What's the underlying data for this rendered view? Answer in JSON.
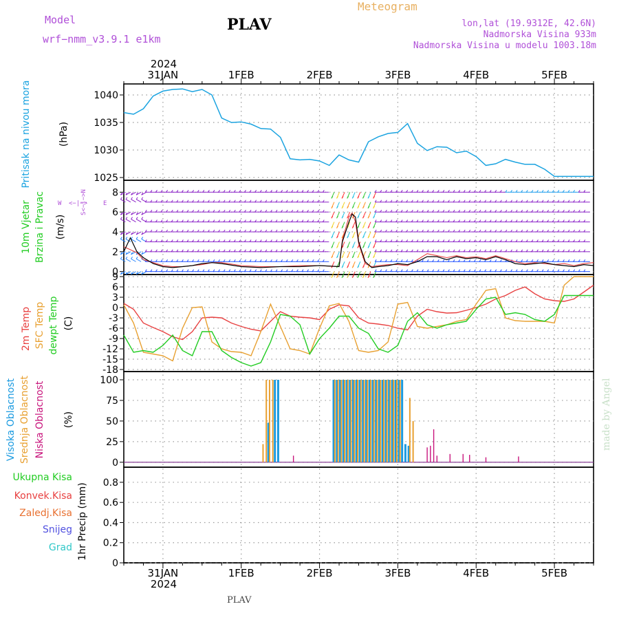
{
  "header": {
    "model_label": "Model",
    "model_name": "wrf−nmm_v3.9.1  e1km",
    "station": "PLAV",
    "meteogram_title": "Meteogram",
    "lonlat": "lon,lat (19.9312E, 42.6N)",
    "elevation": "Nadmorska Visina 933m",
    "model_elevation": "Nadmorska Visina u modelu 1003.18m",
    "watermark": "made by Angel",
    "footer_station": "PLAV"
  },
  "time_axis": {
    "top_year": "2024",
    "bottom_year": "2024",
    "date_labels": [
      "31JAN",
      "1FEB",
      "2FEB",
      "3FEB",
      "4FEB",
      "5FEB"
    ]
  },
  "colors": {
    "pressure": "#1aa3e0",
    "temp2m": "#e84040",
    "sfc": "#e8a030",
    "dew": "#22cc22",
    "vis": "#1a9ae0",
    "mid": "#e8a030",
    "low": "#c8147c",
    "wind_speed": "#000000",
    "gust": "#e84040",
    "grid": "#999999",
    "purple_text": "#b050d8",
    "orange_text": "#e8b060",
    "watermark": "#c8e0c8"
  },
  "panels": {
    "pressure": {
      "label": "Pritisak na nivou mora",
      "unit": "(hPa)",
      "ticks": [
        "1025",
        "1030",
        "1035",
        "1040"
      ]
    },
    "wind": {
      "label1": "10m Vjetar",
      "label2": "Brzina i Pravac",
      "unit": "(m/s)",
      "compass": [
        "W",
        "<−|−>",
        "E",
        "S<−|−>N"
      ],
      "ticks": [
        "0",
        "2",
        "4",
        "6",
        "8"
      ]
    },
    "temp": {
      "label1": "2m Temp",
      "label2": "SFC Temp",
      "label3": "dewpt Temp",
      "unit": "(C)",
      "ticks": [
        "-18",
        "-15",
        "-12",
        "-9",
        "-6",
        "-3",
        "0",
        "3",
        "6",
        "9"
      ]
    },
    "cloud": {
      "label1": "Visoka Oblacnost",
      "label2": "Srednja Oblacnost",
      "label3": "Niska Oblacnost",
      "unit": "(%)",
      "ticks": [
        "0",
        "25",
        "50",
        "75",
        "100"
      ]
    },
    "precip": {
      "legend": [
        "Ukupna Kisa",
        "Konvek.Kisa",
        "Zaledj.Kisa",
        "Snijeg",
        "Grad"
      ],
      "legend_colors": [
        "#22cc22",
        "#e84040",
        "#e87030",
        "#5050e0",
        "#30c8c8"
      ],
      "unit": "1hr Precip (mm)",
      "ticks": [
        "0",
        "0.2",
        "0.4",
        "0.6",
        "0.8"
      ]
    }
  },
  "chart_data": [
    {
      "type": "line",
      "name": "pressure",
      "x_unit": "hours since 30JAN 12UTC",
      "ylim": [
        1024.5,
        1042
      ],
      "x": [
        0,
        3,
        6,
        9,
        12,
        15,
        18,
        21,
        24,
        27,
        30,
        33,
        36,
        39,
        42,
        45,
        48,
        51,
        54,
        57,
        60,
        63,
        66,
        69,
        72,
        75,
        78,
        81,
        84,
        87,
        90,
        93,
        96,
        99,
        102,
        105,
        108,
        111,
        114,
        117,
        120,
        123,
        126,
        129,
        132,
        135,
        138,
        141,
        144
      ],
      "values": [
        1036.8,
        1036.5,
        1037.5,
        1039.8,
        1040.7,
        1041.0,
        1041.1,
        1040.6,
        1041.0,
        1040.0,
        1035.8,
        1035.0,
        1035.1,
        1034.7,
        1033.9,
        1033.8,
        1032.3,
        1028.4,
        1028.2,
        1028.3,
        1028.0,
        1027.2,
        1029.1,
        1028.2,
        1027.8,
        1031.5,
        1032.4,
        1033.0,
        1033.2,
        1034.8,
        1031.2,
        1029.9,
        1030.6,
        1030.5,
        1029.5,
        1029.8,
        1028.8,
        1027.2,
        1027.5,
        1028.3,
        1027.8,
        1027.4,
        1027.4,
        1026.5,
        1025.2,
        1025.2,
        1025.2,
        1025.2,
        1025.2
      ]
    },
    {
      "type": "line",
      "name": "wind",
      "ylim": [
        -0.3,
        9.2
      ],
      "x": [
        0,
        2,
        4,
        6,
        9,
        12,
        15,
        18,
        21,
        24,
        27,
        30,
        36,
        42,
        48,
        54,
        60,
        66,
        67,
        69,
        70,
        71,
        72,
        74,
        76,
        78,
        81,
        84,
        87,
        90,
        93,
        96,
        99,
        102,
        105,
        108,
        111,
        114,
        117,
        120,
        123,
        126,
        129,
        132,
        135,
        138,
        141,
        144
      ],
      "speed": [
        2.0,
        3.4,
        2.0,
        1.4,
        0.8,
        0.5,
        0.4,
        0.5,
        0.6,
        0.8,
        0.9,
        0.8,
        0.5,
        0.4,
        0.5,
        0.5,
        0.6,
        0.5,
        3.0,
        5.0,
        5.8,
        5.5,
        3.0,
        1.0,
        0.4,
        0.5,
        0.6,
        0.8,
        0.7,
        1.0,
        1.5,
        1.5,
        1.2,
        1.5,
        1.3,
        1.4,
        1.2,
        1.5,
        1.2,
        0.8,
        0.7,
        0.8,
        0.9,
        0.7,
        0.6,
        0.5,
        0.7,
        0.6
      ],
      "gust": [
        2.5,
        2.2,
        1.9,
        1.2,
        0.9,
        0.6,
        0.5,
        0.5,
        0.6,
        0.7,
        0.9,
        0.9,
        0.6,
        0.5,
        0.5,
        0.6,
        0.6,
        0.5,
        3.2,
        5.5,
        5.9,
        5.0,
        2.8,
        0.8,
        0.5,
        0.6,
        0.7,
        0.7,
        0.6,
        1.2,
        1.8,
        1.6,
        1.4,
        1.6,
        1.4,
        1.5,
        1.3,
        1.6,
        1.3,
        1.0,
        0.8,
        0.9,
        0.8,
        0.7,
        0.8,
        0.6,
        0.8,
        0.9
      ],
      "series": [
        {
          "name": "speed",
          "color": "#000000"
        },
        {
          "name": "gust",
          "color": "#e84040"
        }
      ]
    },
    {
      "type": "line",
      "name": "temperature",
      "ylim": [
        -18.6,
        9.6
      ],
      "x": [
        0,
        3,
        6,
        9,
        12,
        15,
        18,
        21,
        24,
        27,
        30,
        33,
        36,
        39,
        42,
        45,
        48,
        51,
        54,
        57,
        60,
        63,
        66,
        69,
        72,
        75,
        78,
        81,
        84,
        87,
        90,
        93,
        96,
        99,
        102,
        105,
        108,
        111,
        114,
        117,
        120,
        123,
        126,
        129,
        132,
        135,
        138,
        141,
        144
      ],
      "series": [
        {
          "name": "2m",
          "color": "#e84040",
          "values": [
            1.2,
            -0.5,
            -4.5,
            -5.8,
            -7.0,
            -8.5,
            -9.3,
            -7.0,
            -3.0,
            -2.8,
            -3.0,
            -4.5,
            -5.5,
            -6.3,
            -6.8,
            -4.0,
            -1.2,
            -2.5,
            -2.8,
            -3.0,
            -3.5,
            -0.5,
            0.8,
            0.5,
            -3.0,
            -4.5,
            -4.8,
            -5.2,
            -6.0,
            -6.5,
            -2.5,
            -0.5,
            -1.2,
            -1.6,
            -1.5,
            -0.8,
            0.0,
            1.0,
            2.5,
            3.5,
            5.0,
            6.0,
            4.0,
            2.5,
            2.0,
            1.8,
            2.5,
            4.5,
            6.5
          ]
        },
        {
          "name": "sfc",
          "color": "#e8a030",
          "values": [
            0.8,
            -4.5,
            -13.0,
            -13.5,
            -14.0,
            -15.5,
            -6.0,
            0.0,
            0.2,
            -10.0,
            -12.0,
            -12.8,
            -13.0,
            -14.0,
            -7.0,
            1.0,
            -5.5,
            -12.0,
            -12.5,
            -13.5,
            -6.0,
            0.5,
            1.2,
            -4.0,
            -12.5,
            -13.0,
            -12.5,
            -10.0,
            1.0,
            1.5,
            -5.5,
            -6.0,
            -5.5,
            -5.0,
            -4.0,
            -3.5,
            1.0,
            5.0,
            5.5,
            -3.0,
            -3.8,
            -4.0,
            -4.0,
            -4.0,
            -4.5,
            6.5,
            9.0,
            9.0,
            9.0
          ]
        },
        {
          "name": "dew",
          "color": "#22cc22",
          "values": [
            -8.0,
            -13.0,
            -12.5,
            -13.0,
            -11.0,
            -8.0,
            -12.5,
            -14.0,
            -7.0,
            -7.0,
            -12.5,
            -14.5,
            -16.0,
            -17.0,
            -16.0,
            -10.0,
            -2.0,
            -2.5,
            -5.0,
            -13.5,
            -9.0,
            -6.0,
            -2.5,
            -2.5,
            -6.0,
            -7.5,
            -12.0,
            -13.0,
            -11.0,
            -4.0,
            -1.5,
            -5.0,
            -6.0,
            -5.0,
            -4.5,
            -4.0,
            -0.5,
            2.5,
            3.0,
            -2.0,
            -1.5,
            -2.0,
            -3.5,
            -4.0,
            -2.0,
            3.5,
            3.5,
            3.5,
            3.5
          ]
        }
      ]
    },
    {
      "type": "bar",
      "name": "cloud",
      "ylim": [
        -6,
        110
      ],
      "series": [
        {
          "name": "high",
          "color": "#1a9ae0",
          "x": [
            44,
            46,
            47,
            64,
            65,
            66,
            67,
            68,
            69,
            70,
            71,
            72,
            73,
            74,
            75,
            76,
            77,
            78,
            79,
            80,
            81,
            82,
            83,
            84,
            85,
            86,
            87
          ],
          "values": [
            48,
            100,
            100,
            100,
            100,
            100,
            100,
            100,
            100,
            100,
            100,
            100,
            100,
            100,
            100,
            100,
            100,
            100,
            100,
            100,
            100,
            100,
            100,
            100,
            100,
            22,
            20
          ]
        },
        {
          "name": "mid",
          "color": "#e8a030",
          "x": [
            43,
            44,
            45,
            46,
            65,
            66,
            67,
            68,
            69,
            70,
            71,
            72,
            73,
            74,
            75,
            76,
            77,
            78,
            79,
            80,
            81,
            82,
            83,
            84,
            85,
            88,
            89
          ],
          "values": [
            22,
            100,
            100,
            100,
            100,
            100,
            100,
            100,
            100,
            100,
            100,
            100,
            100,
            100,
            100,
            100,
            100,
            100,
            100,
            100,
            100,
            100,
            100,
            100,
            100,
            78,
            50
          ]
        },
        {
          "name": "low",
          "color": "#c8147c",
          "x": [
            52,
            93,
            94,
            95,
            96,
            100,
            104,
            106,
            111,
            121
          ],
          "values": [
            8,
            18,
            20,
            40,
            8,
            10,
            10,
            9,
            6,
            7
          ]
        }
      ]
    },
    {
      "type": "bar",
      "name": "precip",
      "ylim": [
        0,
        0.95
      ],
      "values": []
    }
  ]
}
